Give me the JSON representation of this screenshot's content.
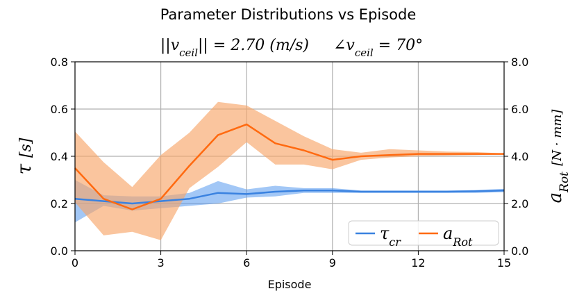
{
  "chart_data": {
    "type": "line",
    "title": "Parameter Distributions vs Episode",
    "subtitle": "||v_ceil|| = 2.70 (m/s)    ∠v_ceil = 70°",
    "subtitle_parts": {
      "norm_label": "||v",
      "norm_sub": "ceil",
      "norm_value": "|| = 2.70 (m/s)",
      "angle_label": "∠v",
      "angle_sub": "ceil",
      "angle_value": " = 70°"
    },
    "xlabel": "Episode",
    "ylabel_left": {
      "symbol": "τ",
      "unit": "[s]"
    },
    "ylabel_right": {
      "symbol": "a",
      "sub": "Rot",
      "unit": "[N · mm]"
    },
    "xlim": [
      0,
      15
    ],
    "ylim_left": [
      0.0,
      0.8
    ],
    "ylim_right": [
      0.0,
      8.0
    ],
    "x_ticks": [
      "0",
      "3",
      "6",
      "9",
      "12",
      "15"
    ],
    "y_ticks_left": [
      "0.0",
      "0.2",
      "0.4",
      "0.6",
      "0.8"
    ],
    "y_ticks_right": [
      "0.0",
      "2.0",
      "4.0",
      "6.0",
      "8.0"
    ],
    "grid": true,
    "legend_position": "lower-right",
    "x": [
      0,
      1,
      2,
      3,
      4,
      5,
      6,
      7,
      8,
      9,
      10,
      11,
      12,
      13,
      14,
      15
    ],
    "series": [
      {
        "name": "τ_cr",
        "legend_symbol": "τ",
        "legend_sub": "cr",
        "axis": "left",
        "color": "#3a82e0",
        "fill_color": "#5599ee",
        "values": [
          0.22,
          0.21,
          0.2,
          0.21,
          0.22,
          0.245,
          0.24,
          0.25,
          0.255,
          0.255,
          0.25,
          0.25,
          0.25,
          0.25,
          0.252,
          0.255
        ],
        "lower": [
          0.12,
          0.19,
          0.17,
          0.18,
          0.19,
          0.2,
          0.225,
          0.23,
          0.245,
          0.245,
          0.245,
          0.245,
          0.245,
          0.245,
          0.245,
          0.248
        ],
        "upper": [
          0.3,
          0.235,
          0.23,
          0.23,
          0.245,
          0.295,
          0.26,
          0.275,
          0.265,
          0.265,
          0.255,
          0.255,
          0.255,
          0.255,
          0.257,
          0.262
        ]
      },
      {
        "name": "a_Rot",
        "legend_symbol": "a",
        "legend_sub": "Rot",
        "axis": "right",
        "color": "#ff6a10",
        "fill_color": "#f7a66a",
        "values": [
          3.5,
          2.2,
          1.75,
          2.2,
          3.6,
          4.9,
          5.35,
          4.55,
          4.25,
          3.85,
          4.0,
          4.05,
          4.1,
          4.1,
          4.1,
          4.1
        ],
        "lower": [
          2.05,
          0.65,
          0.8,
          0.45,
          2.65,
          3.55,
          4.6,
          3.65,
          3.65,
          3.45,
          3.85,
          3.95,
          4.0,
          4.03,
          4.05,
          4.08
        ],
        "upper": [
          5.05,
          3.75,
          2.7,
          4.05,
          5.0,
          6.3,
          6.15,
          5.5,
          4.85,
          4.3,
          4.15,
          4.3,
          4.25,
          4.2,
          4.18,
          4.12
        ]
      }
    ]
  }
}
